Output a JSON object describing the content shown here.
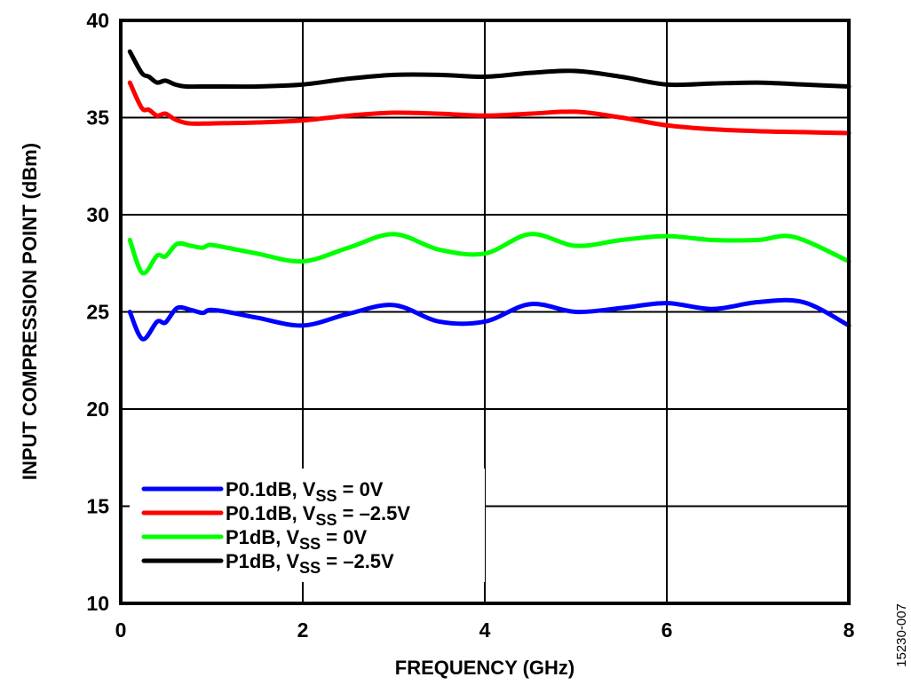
{
  "chart_data": {
    "type": "line",
    "title": "",
    "xlabel": "FREQUENCY (GHz)",
    "ylabel": "INPUT COMPRESSION POINT (dBm)",
    "xlim": [
      0,
      8
    ],
    "ylim": [
      10,
      40
    ],
    "xticks": [
      0,
      2,
      4,
      6,
      8
    ],
    "yticks": [
      10,
      15,
      20,
      25,
      30,
      35,
      40
    ],
    "xtick_labels": [
      "0",
      "2",
      "4",
      "6",
      "8"
    ],
    "ytick_labels": [
      "10",
      "15",
      "20",
      "25",
      "30",
      "35",
      "40"
    ],
    "grid": true,
    "legend_position": "bottom-left",
    "figure_id": "15230-007",
    "series": [
      {
        "name": "P0.1dB, VSS = 0V",
        "label_main": "P0.1dB, V",
        "label_sub": "SS",
        "label_tail": " = 0V",
        "color": "#0000ff",
        "x": [
          0.1,
          0.24,
          0.4,
          0.49,
          0.62,
          0.77,
          0.9,
          0.98,
          1.17,
          1.5,
          2.0,
          2.5,
          3.0,
          3.5,
          4.0,
          4.5,
          5.0,
          5.5,
          6.0,
          6.5,
          7.0,
          7.5,
          8.0
        ],
        "y": [
          25.0,
          23.6,
          24.5,
          24.45,
          25.2,
          25.1,
          24.95,
          25.1,
          25.0,
          24.7,
          24.3,
          24.9,
          25.35,
          24.5,
          24.5,
          25.4,
          25.0,
          25.2,
          25.45,
          25.15,
          25.5,
          25.5,
          24.3
        ]
      },
      {
        "name": "P0.1dB, VSS = -2.5V",
        "label_main": "P0.1dB, V",
        "label_sub": "SS",
        "label_tail": " = –2.5V",
        "color": "#ff0000",
        "x": [
          0.1,
          0.23,
          0.31,
          0.4,
          0.49,
          0.6,
          0.75,
          1.0,
          1.5,
          2.0,
          2.5,
          3.0,
          3.5,
          4.0,
          4.5,
          5.0,
          5.5,
          6.0,
          6.5,
          7.0,
          7.5,
          8.0
        ],
        "y": [
          36.8,
          35.5,
          35.4,
          35.1,
          35.2,
          34.9,
          34.7,
          34.7,
          34.75,
          34.85,
          35.1,
          35.25,
          35.2,
          35.1,
          35.2,
          35.3,
          35.0,
          34.6,
          34.4,
          34.3,
          34.25,
          34.2
        ]
      },
      {
        "name": "P1dB, VSS = 0V",
        "label_main": "P1dB, V",
        "label_sub": "SS",
        "label_tail": " = 0V",
        "color": "#00ff00",
        "x": [
          0.1,
          0.24,
          0.4,
          0.49,
          0.62,
          0.77,
          0.9,
          0.98,
          1.17,
          1.5,
          2.0,
          2.5,
          3.0,
          3.5,
          4.0,
          4.5,
          5.0,
          5.5,
          6.0,
          6.5,
          7.0,
          7.4,
          8.0
        ],
        "y": [
          28.7,
          27.0,
          27.9,
          27.85,
          28.5,
          28.4,
          28.3,
          28.45,
          28.3,
          28.0,
          27.6,
          28.3,
          29.0,
          28.2,
          28.0,
          29.0,
          28.4,
          28.7,
          28.9,
          28.7,
          28.7,
          28.85,
          27.6
        ]
      },
      {
        "name": "P1dB, VSS = -2.5V",
        "label_main": "P1dB, V",
        "label_sub": "SS",
        "label_tail": " = –2.5V",
        "color": "#000000",
        "x": [
          0.1,
          0.23,
          0.31,
          0.4,
          0.49,
          0.6,
          0.72,
          1.0,
          1.5,
          2.0,
          2.5,
          3.0,
          3.5,
          4.0,
          4.5,
          5.0,
          5.5,
          6.0,
          6.5,
          7.0,
          7.5,
          8.0
        ],
        "y": [
          38.4,
          37.3,
          37.1,
          36.8,
          36.9,
          36.7,
          36.6,
          36.6,
          36.6,
          36.7,
          37.0,
          37.2,
          37.2,
          37.1,
          37.3,
          37.4,
          37.1,
          36.7,
          36.75,
          36.8,
          36.7,
          36.6
        ]
      }
    ]
  }
}
